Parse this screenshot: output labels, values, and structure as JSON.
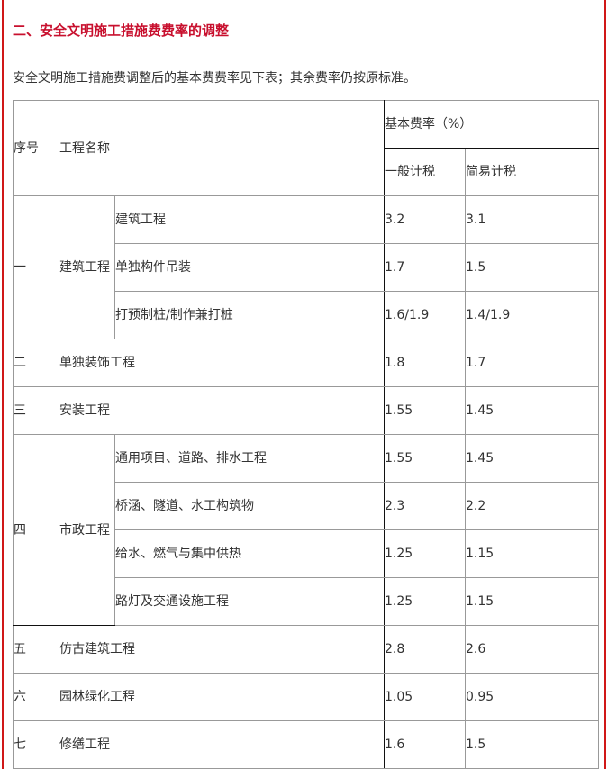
{
  "heading": "二、安全文明施工措施费费率的调整",
  "intro": "安全文明施工措施费调整后的基本费费率见下表；其余费率仍按原标准。",
  "colors": {
    "heading": "#c8102e",
    "frame": "#d01818"
  },
  "table": {
    "headers": {
      "no": "序号",
      "name": "工程名称",
      "rate": "基本费率（%）",
      "general": "一般计税",
      "simple": "简易计税"
    },
    "groups": [
      {
        "no": "一",
        "name": "建筑工程",
        "items": [
          {
            "name": "建筑工程",
            "general": "3.2",
            "simple": "3.1"
          },
          {
            "name": "单独构件吊装",
            "general": "1.7",
            "simple": "1.5"
          },
          {
            "name": "打预制桩/制作兼打桩",
            "general": "1.6/1.9",
            "simple": "1.4/1.9"
          }
        ]
      },
      {
        "no": "二",
        "name": "单独装饰工程",
        "general": "1.8",
        "simple": "1.7"
      },
      {
        "no": "三",
        "name": "安装工程",
        "general": "1.55",
        "simple": "1.45"
      },
      {
        "no": "四",
        "name": "市政工程",
        "items": [
          {
            "name": "通用项目、道路、排水工程",
            "general": "1.55",
            "simple": "1.45"
          },
          {
            "name": "桥涵、隧道、水工构筑物",
            "general": "2.3",
            "simple": "2.2"
          },
          {
            "name": "给水、燃气与集中供热",
            "general": "1.25",
            "simple": "1.15"
          },
          {
            "name": "路灯及交通设施工程",
            "general": "1.25",
            "simple": "1.15"
          }
        ]
      },
      {
        "no": "五",
        "name": "仿古建筑工程",
        "general": "2.8",
        "simple": "2.6"
      },
      {
        "no": "六",
        "name": "园林绿化工程",
        "general": "1.05",
        "simple": "0.95"
      },
      {
        "no": "七",
        "name": "修缮工程",
        "general": "1.6",
        "simple": "1.5"
      }
    ]
  }
}
